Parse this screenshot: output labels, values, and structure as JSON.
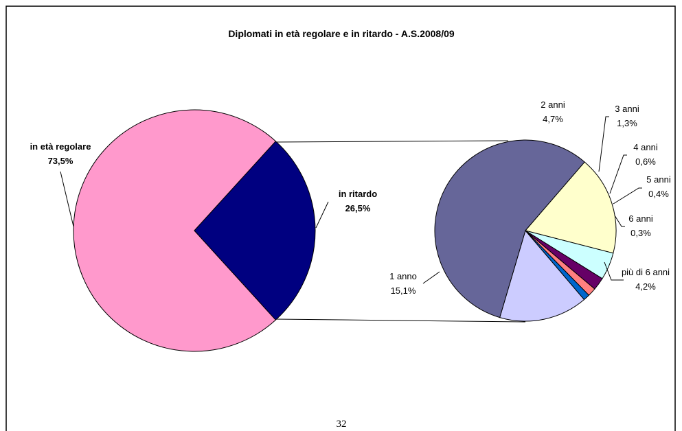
{
  "chart_data": {
    "type": "pie_of_pie",
    "title": "Diplomati in età regolare e in ritardo - A.S.2008/09",
    "categories": [
      "in età regolare",
      "in ritardo"
    ],
    "values": [
      73.5,
      26.5
    ],
    "value_labels": [
      "73,5%",
      "26,5%"
    ],
    "colors": [
      "#ff99cc",
      "#000080"
    ],
    "detail": {
      "categories": [
        "più di 6 anni",
        "1 anno",
        "2 anni",
        "3 anni",
        "4 anni",
        "5 anni",
        "6 anni"
      ],
      "values": [
        4.2,
        15.1,
        4.7,
        1.3,
        0.6,
        0.4,
        0.3
      ],
      "value_labels": [
        "4,2%",
        "15,1%",
        "4,7%",
        "1,3%",
        "0,6%",
        "0,4%",
        "0,3%"
      ],
      "colors": [
        "#ccccff",
        "#666699",
        "#ffffcc",
        "#ccffff",
        "#660066",
        "#ff8080",
        "#0066cc"
      ]
    }
  },
  "footer": {
    "page_number": "32"
  }
}
